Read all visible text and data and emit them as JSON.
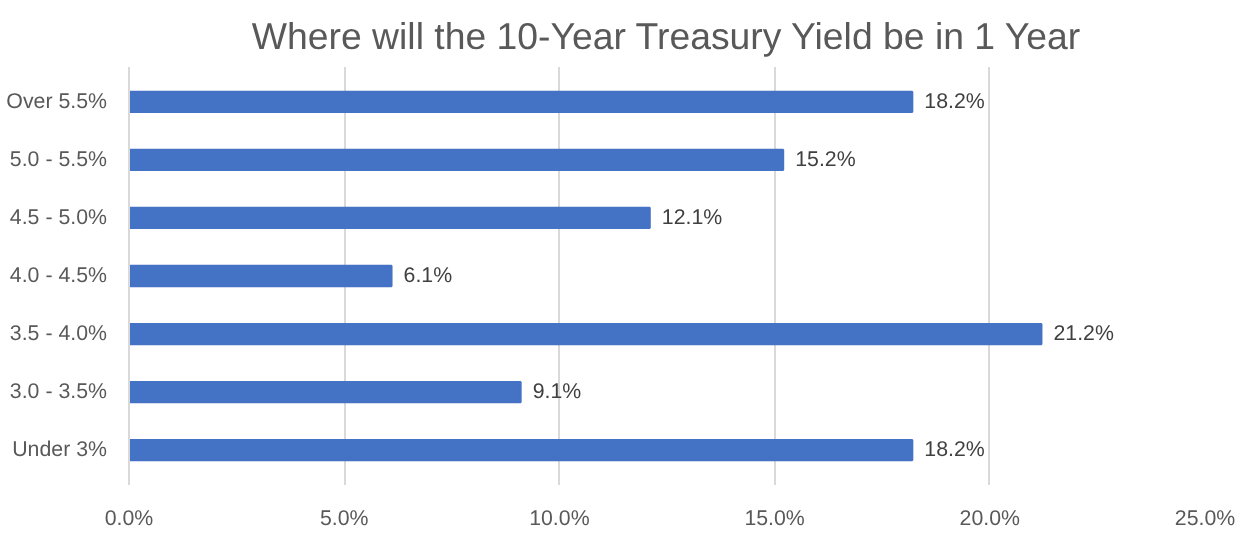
{
  "chart_data": {
    "type": "bar",
    "orientation": "horizontal",
    "title": "Where will the 10-Year Treasury Yield be in 1 Year",
    "categories": [
      "Over 5.5%",
      "5.0 - 5.5%",
      "4.5 - 5.0%",
      "4.0 - 4.5%",
      "3.5 - 4.0%",
      "3.0 - 3.5%",
      "Under 3%"
    ],
    "values": [
      18.2,
      15.2,
      12.1,
      6.1,
      21.2,
      9.1,
      18.2
    ],
    "value_labels": [
      "18.2%",
      "15.2%",
      "12.1%",
      "6.1%",
      "21.2%",
      "9.1%",
      "18.2%"
    ],
    "color": "#4472c4",
    "xlim": [
      0,
      25
    ],
    "xticks": [
      {
        "value": 0,
        "label": "0.0%"
      },
      {
        "value": 5,
        "label": "5.0%"
      },
      {
        "value": 10,
        "label": "10.0%"
      },
      {
        "value": 15,
        "label": "15.0%"
      },
      {
        "value": 20,
        "label": "20.0%"
      },
      {
        "value": 25,
        "label": "25.0%"
      }
    ],
    "grid": "x"
  }
}
